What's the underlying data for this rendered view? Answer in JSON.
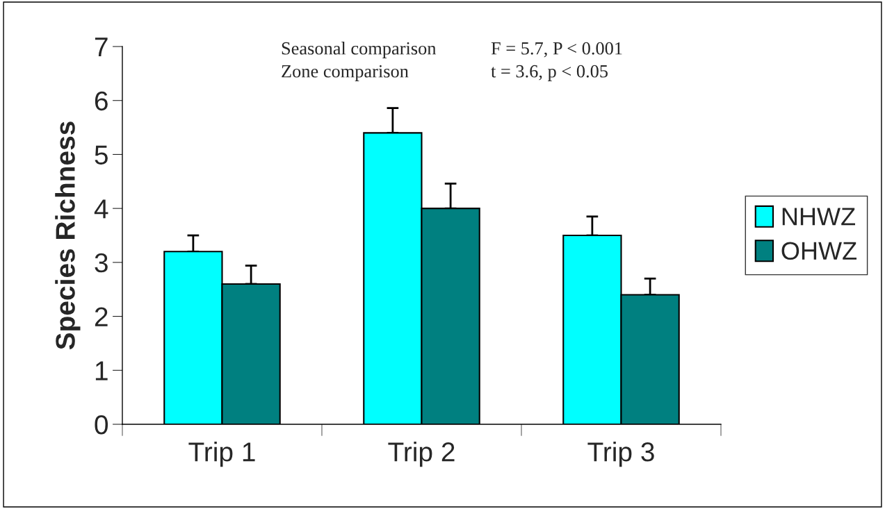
{
  "chart_data": {
    "type": "bar",
    "ylabel": "Species Richness",
    "categories": [
      "Trip 1",
      "Trip 2",
      "Trip 3"
    ],
    "series": [
      {
        "name": "NHWZ",
        "color": "#00ffff",
        "values": [
          3.2,
          5.4,
          3.5
        ],
        "errors": [
          [
            3.2,
            3.5
          ],
          [
            5.4,
            5.86
          ],
          [
            3.5,
            3.85
          ]
        ]
      },
      {
        "name": "OHWZ",
        "color": "#008080",
        "values": [
          2.6,
          4.0,
          2.4
        ],
        "errors": [
          [
            2.6,
            2.94
          ],
          [
            4.0,
            4.46
          ],
          [
            2.4,
            2.7
          ]
        ]
      }
    ],
    "ylim": [
      0,
      7
    ],
    "yticks": [
      0,
      1,
      2,
      3,
      4,
      5,
      6,
      7
    ],
    "grid": false,
    "legend": "right",
    "annotations": [
      "Seasonal comparison",
      "F = 5.7, P < 0.001",
      "Zone comparison",
      "t = 3.6, p < 0.05"
    ]
  }
}
